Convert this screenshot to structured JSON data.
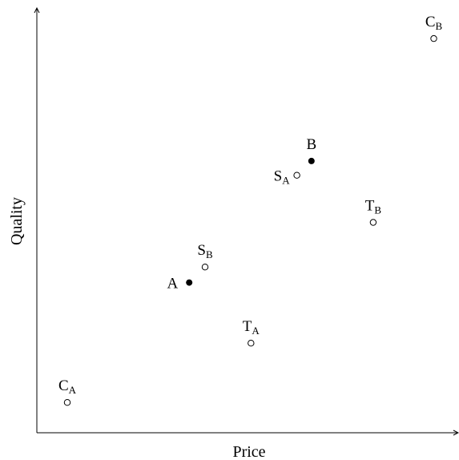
{
  "chart_data": {
    "type": "scatter",
    "title": "",
    "xlabel": "Price",
    "ylabel": "Quality",
    "xlim": [
      0,
      100
    ],
    "ylim": [
      0,
      100
    ],
    "grid": false,
    "ticks": false,
    "points": [
      {
        "label": "A",
        "sub": "",
        "x": 36.5,
        "y": 35.7,
        "filled": true,
        "label_pos": "left"
      },
      {
        "label": "B",
        "sub": "",
        "x": 65.8,
        "y": 64.6,
        "filled": true,
        "label_pos": "above"
      },
      {
        "label": "C",
        "sub": "A",
        "x": 7.3,
        "y": 7.2,
        "filled": false,
        "label_pos": "above"
      },
      {
        "label": "C",
        "sub": "B",
        "x": 95.1,
        "y": 93.7,
        "filled": false,
        "label_pos": "above"
      },
      {
        "label": "S",
        "sub": "A",
        "x": 62.3,
        "y": 61.2,
        "filled": false,
        "label_pos": "left"
      },
      {
        "label": "S",
        "sub": "B",
        "x": 40.3,
        "y": 39.4,
        "filled": false,
        "label_pos": "above"
      },
      {
        "label": "T",
        "sub": "A",
        "x": 51.3,
        "y": 21.3,
        "filled": false,
        "label_pos": "above"
      },
      {
        "label": "T",
        "sub": "B",
        "x": 80.6,
        "y": 50.0,
        "filled": false,
        "label_pos": "above"
      }
    ]
  }
}
